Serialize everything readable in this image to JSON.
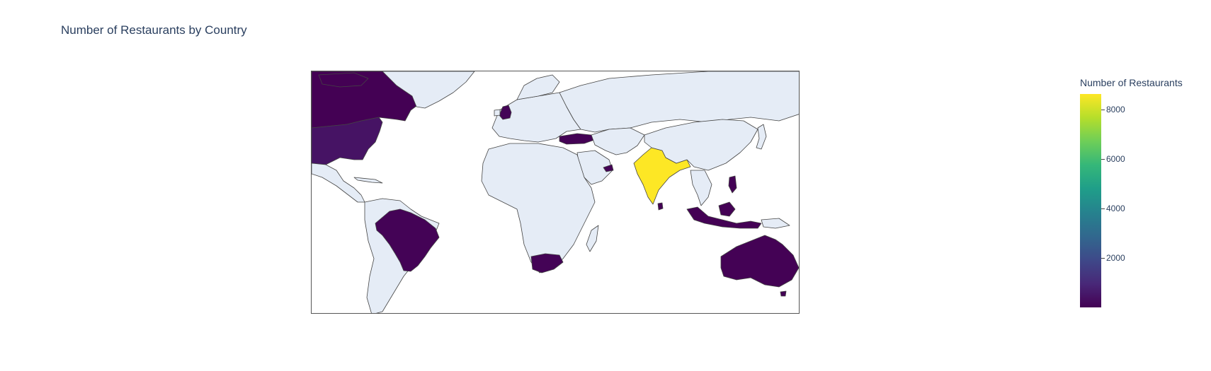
{
  "title": "Number of Restaurants by Country",
  "colorbar": {
    "title": "Number of Restaurants",
    "ticks": [
      "2000",
      "4000",
      "6000",
      "8000"
    ],
    "colorscale": "Viridis",
    "min_color": "#440154",
    "max_color": "#fde725"
  },
  "colors": {
    "no_data": "#e5ecf6",
    "border": "#444444",
    "low": "#440154",
    "mid_low": "#471065",
    "high": "#fde725"
  },
  "chart_data": {
    "type": "choropleth",
    "title": "Number of Restaurants by Country",
    "colorbar_title": "Number of Restaurants",
    "colorbar_ticks": [
      2000,
      4000,
      6000,
      8000
    ],
    "approx_range": [
      0,
      8650
    ],
    "regions": [
      {
        "country": "India",
        "value": 8650
      },
      {
        "country": "United States",
        "value": 434
      },
      {
        "country": "United Kingdom",
        "value": 80
      },
      {
        "country": "Brazil",
        "value": 60
      },
      {
        "country": "South Africa",
        "value": 60
      },
      {
        "country": "United Arab Emirates",
        "value": 60
      },
      {
        "country": "Canada",
        "value": 4
      },
      {
        "country": "Australia",
        "value": 24
      },
      {
        "country": "Turkey",
        "value": 34
      },
      {
        "country": "Indonesia",
        "value": 21
      },
      {
        "country": "Sri Lanka",
        "value": 20
      },
      {
        "country": "Qatar",
        "value": 20
      },
      {
        "country": "Philippines",
        "value": 22
      },
      {
        "country": "Singapore",
        "value": 20
      },
      {
        "country": "New Zealand",
        "value": 40
      }
    ]
  }
}
